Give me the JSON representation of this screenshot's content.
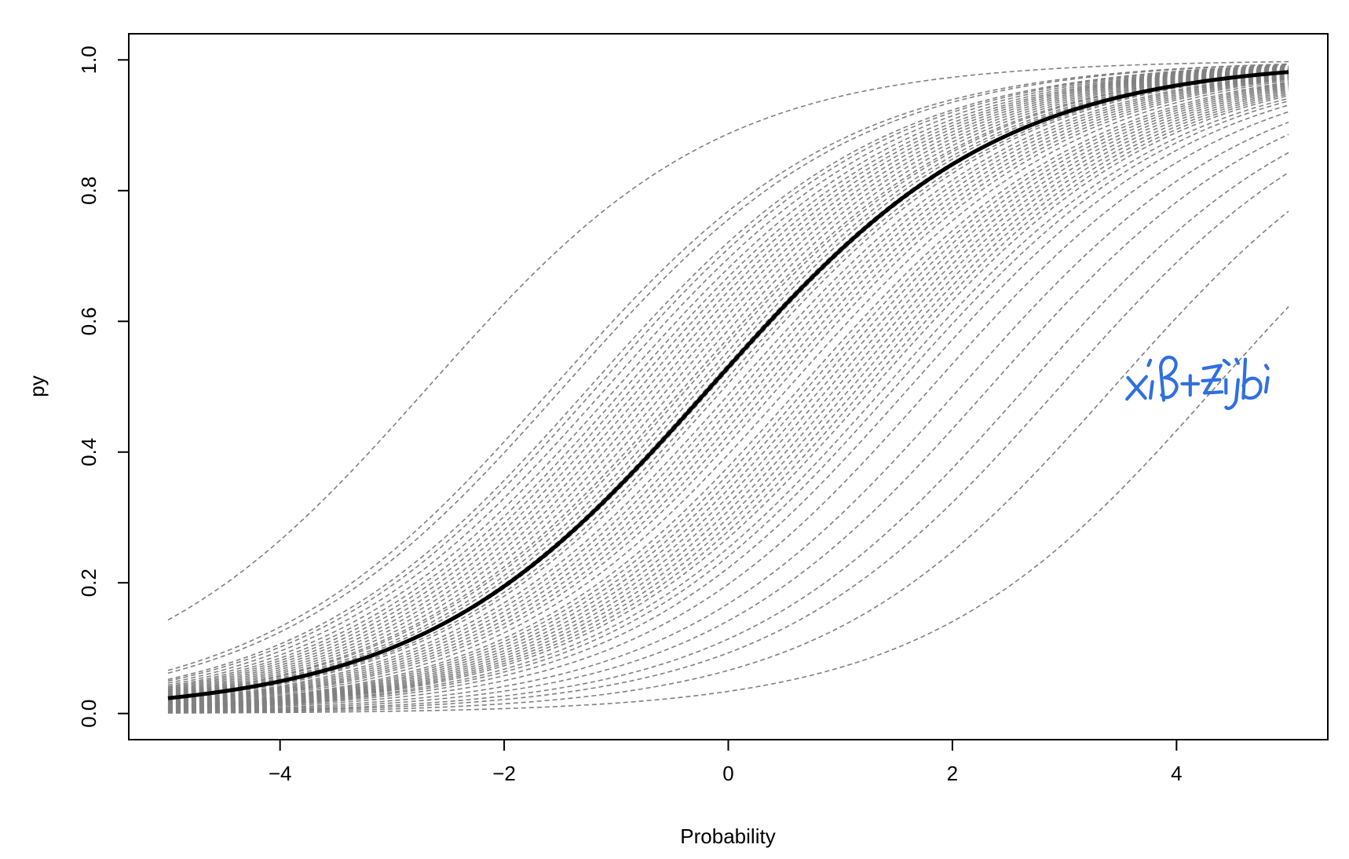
{
  "chart_data": {
    "type": "line",
    "title": "",
    "xlabel": "Probability",
    "ylabel": "py",
    "xlim": [
      -5.35,
      5.35
    ],
    "ylim": [
      -0.04,
      1.04
    ],
    "x_ticks": [
      -4,
      -2,
      0,
      2,
      4
    ],
    "x_tick_labels": [
      "−4",
      "−2",
      "0",
      "2",
      "4"
    ],
    "y_ticks": [
      0.0,
      0.2,
      0.4,
      0.6,
      0.8,
      1.0
    ],
    "y_tick_labels": [
      "0.0",
      "0.2",
      "0.4",
      "0.6",
      "0.8",
      "1.0"
    ],
    "x_range": [
      -5,
      5
    ],
    "grid": false,
    "legend": "none",
    "main_curve": {
      "function": "logistic",
      "intercept": 0.12,
      "slope": 0.77,
      "color": "#000000",
      "style": "solid"
    },
    "random_effect_curves": {
      "function": "logistic",
      "slope": 0.77,
      "color": "#808080",
      "style": "dashed",
      "intercepts": [
        2.06,
        1.2,
        1.13,
        0.95,
        0.9,
        0.83,
        0.76,
        0.7,
        0.65,
        0.6,
        0.55,
        0.5,
        0.45,
        0.4,
        0.35,
        0.3,
        0.27,
        0.22,
        0.18,
        0.14,
        0.1,
        0.06,
        0.02,
        -0.05,
        -0.1,
        -0.15,
        -0.2,
        -0.25,
        -0.3,
        -0.35,
        -0.42,
        -0.5,
        -0.55,
        -0.6,
        -0.65,
        -0.7,
        -0.75,
        -0.8,
        -0.85,
        -0.9,
        -0.95,
        -1.0,
        -1.08,
        -1.15,
        -1.25,
        -1.4,
        -1.6,
        -1.8,
        -2.05,
        -2.28,
        -2.65,
        -3.35
      ]
    },
    "annotation": {
      "text": "xiβ+zijbi",
      "style": "handwritten",
      "color": "#2f6fe0"
    }
  }
}
